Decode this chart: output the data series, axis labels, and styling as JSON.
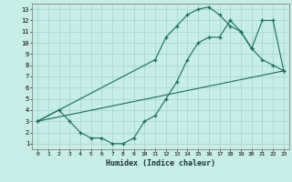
{
  "xlabel": "Humidex (Indice chaleur)",
  "bg_color": "#c8ece6",
  "grid_color": "#a8d8d0",
  "line_color": "#1a6b5a",
  "xlim": [
    -0.5,
    23.5
  ],
  "ylim": [
    0.5,
    13.5
  ],
  "xticks": [
    0,
    1,
    2,
    3,
    4,
    5,
    6,
    7,
    8,
    9,
    10,
    11,
    12,
    13,
    14,
    15,
    16,
    17,
    18,
    19,
    20,
    21,
    22,
    23
  ],
  "yticks": [
    1,
    2,
    3,
    4,
    5,
    6,
    7,
    8,
    9,
    10,
    11,
    12,
    13
  ],
  "curve1_x": [
    0,
    2,
    3,
    4,
    5,
    6,
    7,
    8,
    9,
    10,
    11,
    12,
    13,
    14,
    15,
    16,
    17,
    18,
    19,
    20,
    21,
    22,
    23
  ],
  "curve1_y": [
    3,
    4,
    3,
    2,
    1.5,
    1.5,
    1,
    1,
    1.5,
    3,
    3.5,
    5,
    6.5,
    8.5,
    10,
    10.5,
    10.5,
    12,
    11,
    9.5,
    8.5,
    8,
    7.5
  ],
  "curve2_x": [
    0,
    11,
    12,
    13,
    14,
    15,
    16,
    17,
    18,
    19,
    20,
    21,
    22,
    23
  ],
  "curve2_y": [
    3,
    8.5,
    10.5,
    11.5,
    12.5,
    13,
    13.2,
    12.5,
    11.5,
    11,
    9.5,
    12,
    12,
    7.5
  ],
  "curve3_x": [
    0,
    23
  ],
  "curve3_y": [
    3,
    7.5
  ]
}
